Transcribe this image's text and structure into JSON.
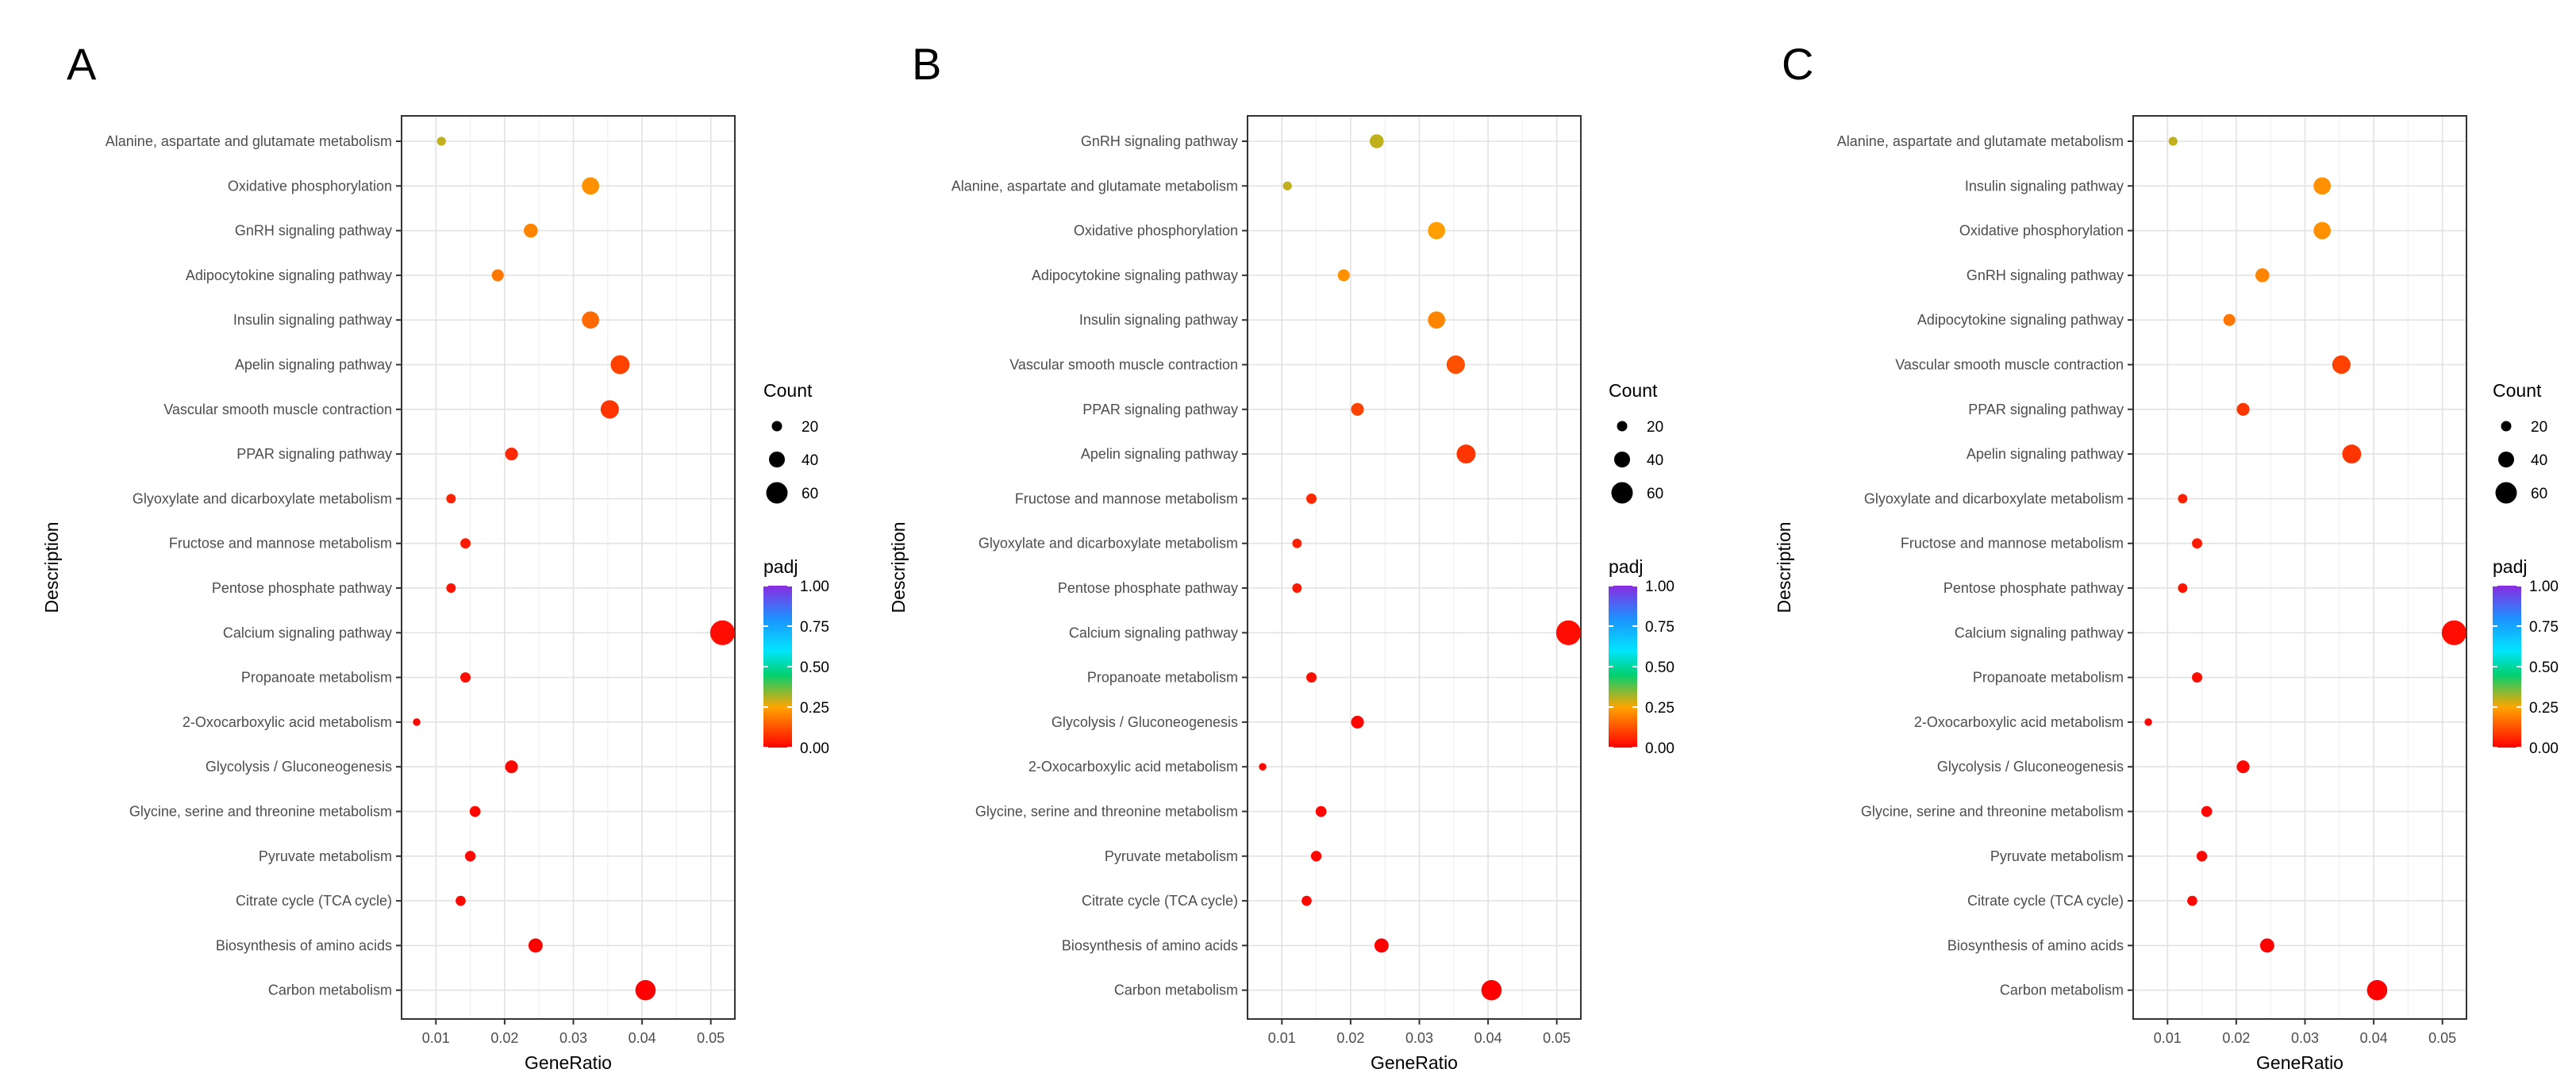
{
  "legend": {
    "count_title": "Count",
    "count_levels": [
      "20",
      "40",
      "60"
    ],
    "color_title": "padj",
    "color_ticks": [
      "1.00",
      "0.75",
      "0.50",
      "0.25",
      "0.00"
    ],
    "color_stops": [
      "#8a2be2",
      "#1e90ff",
      "#00e5ff",
      "#00d070",
      "#ffa500",
      "#ff0000"
    ]
  },
  "chart_data": [
    {
      "type": "scatter",
      "panel_label": "A",
      "xlabel": "GeneRatio",
      "ylabel": "Description",
      "xlim": [
        0.005,
        0.0535
      ],
      "x_ticks": [
        "0.01",
        "0.02",
        "0.03",
        "0.04",
        "0.05"
      ],
      "grid": true,
      "categories": [
        "Alanine, aspartate and glutamate metabolism",
        "Oxidative phosphorylation",
        "GnRH signaling pathway",
        "Adipocytokine signaling pathway",
        "Insulin signaling pathway",
        "Apelin signaling pathway",
        "Vascular smooth muscle contraction",
        "PPAR signaling pathway",
        "Glyoxylate and dicarboxylate metabolism",
        "Fructose and mannose metabolism",
        "Pentose phosphate pathway",
        "Calcium signaling pathway",
        "Propanoate metabolism",
        "2-Oxocarboxylic acid metabolism",
        "Glycolysis / Gluconeogenesis",
        "Glycine, serine and threonine metabolism",
        "Pyruvate metabolism",
        "Citrate cycle (TCA cycle)",
        "Biosynthesis of amino acids",
        "Carbon metabolism"
      ],
      "gene_ratio": [
        0.0108,
        0.0325,
        0.0238,
        0.019,
        0.0325,
        0.0368,
        0.0353,
        0.021,
        0.0122,
        0.0143,
        0.0122,
        0.0517,
        0.0143,
        0.0072,
        0.021,
        0.0157,
        0.015,
        0.0136,
        0.0245,
        0.0405
      ],
      "count": [
        15,
        45,
        33,
        26,
        45,
        51,
        49,
        29,
        17,
        20,
        17,
        72,
        20,
        10,
        29,
        22,
        21,
        19,
        34,
        56
      ],
      "padj": [
        0.3,
        0.22,
        0.2,
        0.18,
        0.16,
        0.1,
        0.08,
        0.06,
        0.05,
        0.04,
        0.03,
        0.02,
        0.02,
        0.01,
        0.01,
        0.01,
        0.01,
        0.01,
        0.0,
        0.0
      ]
    },
    {
      "type": "scatter",
      "panel_label": "B",
      "xlabel": "GeneRatio",
      "ylabel": "Description",
      "xlim": [
        0.005,
        0.0535
      ],
      "x_ticks": [
        "0.01",
        "0.02",
        "0.03",
        "0.04",
        "0.05"
      ],
      "grid": true,
      "categories": [
        "GnRH signaling pathway",
        "Alanine, aspartate and glutamate metabolism",
        "Oxidative phosphorylation",
        "Adipocytokine signaling pathway",
        "Insulin signaling pathway",
        "Vascular smooth muscle contraction",
        "PPAR signaling pathway",
        "Apelin signaling pathway",
        "Fructose and mannose metabolism",
        "Glyoxylate and dicarboxylate metabolism",
        "Pentose phosphate pathway",
        "Calcium signaling pathway",
        "Propanoate metabolism",
        "Glycolysis / Gluconeogenesis",
        "2-Oxocarboxylic acid metabolism",
        "Glycine, serine and threonine metabolism",
        "Pyruvate metabolism",
        "Citrate cycle (TCA cycle)",
        "Biosynthesis of amino acids",
        "Carbon metabolism"
      ],
      "gene_ratio": [
        0.0238,
        0.0108,
        0.0325,
        0.019,
        0.0325,
        0.0353,
        0.021,
        0.0368,
        0.0143,
        0.0122,
        0.0122,
        0.0517,
        0.0143,
        0.021,
        0.0072,
        0.0157,
        0.015,
        0.0136,
        0.0245,
        0.0405
      ],
      "count": [
        33,
        15,
        45,
        26,
        45,
        49,
        29,
        51,
        20,
        17,
        17,
        72,
        20,
        29,
        10,
        22,
        21,
        19,
        34,
        56
      ],
      "padj": [
        0.3,
        0.3,
        0.24,
        0.22,
        0.2,
        0.12,
        0.1,
        0.08,
        0.06,
        0.05,
        0.04,
        0.02,
        0.02,
        0.01,
        0.01,
        0.01,
        0.01,
        0.01,
        0.0,
        0.0
      ]
    },
    {
      "type": "scatter",
      "panel_label": "C",
      "xlabel": "GeneRatio",
      "ylabel": "Description",
      "xlim": [
        0.005,
        0.0535
      ],
      "x_ticks": [
        "0.01",
        "0.02",
        "0.03",
        "0.04",
        "0.05"
      ],
      "grid": true,
      "categories": [
        "Alanine, aspartate and glutamate metabolism",
        "Insulin signaling pathway",
        "Oxidative phosphorylation",
        "GnRH signaling pathway",
        "Adipocytokine signaling pathway",
        "Vascular smooth muscle contraction",
        "PPAR signaling pathway",
        "Apelin signaling pathway",
        "Glyoxylate and dicarboxylate metabolism",
        "Fructose and mannose metabolism",
        "Pentose phosphate pathway",
        "Calcium signaling pathway",
        "Propanoate metabolism",
        "2-Oxocarboxylic acid metabolism",
        "Glycolysis / Gluconeogenesis",
        "Glycine, serine and threonine metabolism",
        "Pyruvate metabolism",
        "Citrate cycle (TCA cycle)",
        "Biosynthesis of amino acids",
        "Carbon metabolism"
      ],
      "gene_ratio": [
        0.0108,
        0.0325,
        0.0325,
        0.0238,
        0.019,
        0.0353,
        0.021,
        0.0368,
        0.0122,
        0.0143,
        0.0122,
        0.0517,
        0.0143,
        0.0072,
        0.021,
        0.0157,
        0.015,
        0.0136,
        0.0245,
        0.0405
      ],
      "count": [
        15,
        45,
        45,
        33,
        26,
        49,
        29,
        51,
        17,
        20,
        17,
        72,
        20,
        10,
        29,
        22,
        21,
        19,
        34,
        56
      ],
      "padj": [
        0.3,
        0.22,
        0.22,
        0.2,
        0.18,
        0.1,
        0.08,
        0.08,
        0.05,
        0.04,
        0.03,
        0.02,
        0.02,
        0.01,
        0.01,
        0.01,
        0.01,
        0.01,
        0.0,
        0.0
      ]
    }
  ]
}
